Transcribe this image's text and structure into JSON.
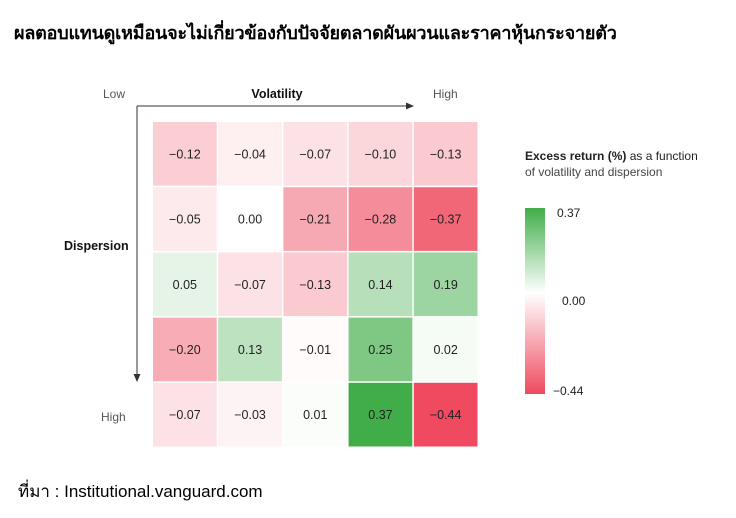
{
  "title": "ผลตอบแทนดูเหมือนจะไม่เกี่ยวข้องกับปัจจัยตลาดผันผวนและราคาหุ้นกระจายตัว",
  "source": "ที่มา : Institutional.vanguard.com",
  "chart_data": {
    "type": "heatmap",
    "x_axis": {
      "label": "Volatility",
      "low_label": "Low",
      "high_label": "High"
    },
    "y_axis": {
      "label": "Dispersion",
      "high_label": "High"
    },
    "values": [
      [
        -0.12,
        -0.04,
        -0.07,
        -0.1,
        -0.13
      ],
      [
        -0.05,
        0.0,
        -0.21,
        -0.28,
        -0.37
      ],
      [
        0.05,
        -0.07,
        -0.13,
        0.14,
        0.19
      ],
      [
        -0.2,
        0.13,
        -0.01,
        0.25,
        0.02
      ],
      [
        -0.07,
        -0.03,
        0.01,
        0.37,
        -0.44
      ]
    ],
    "labels": [
      [
        "−0.12",
        "−0.04",
        "−0.07",
        "−0.10",
        "−0.13"
      ],
      [
        "−0.05",
        "0.00",
        "−0.21",
        "−0.28",
        "−0.37"
      ],
      [
        "0.05",
        "−0.07",
        "−0.13",
        "0.14",
        "0.19"
      ],
      [
        "−0.20",
        "0.13",
        "−0.01",
        "0.25",
        "0.02"
      ],
      [
        "−0.07",
        "−0.03",
        "0.01",
        "0.37",
        "−0.44"
      ]
    ],
    "colorbar": {
      "title_bold": "Excess return (%)",
      "title_rest": " as a function",
      "title_line2": "of volatility and dispersion",
      "max": 0.37,
      "mid": 0.0,
      "min": -0.44,
      "max_label": "0.37",
      "mid_label": "0.00",
      "min_label": "−0.44",
      "positive_color": "#41ad49",
      "negative_color": "#ef4a5f",
      "neutral_color": "#ffffff"
    }
  }
}
